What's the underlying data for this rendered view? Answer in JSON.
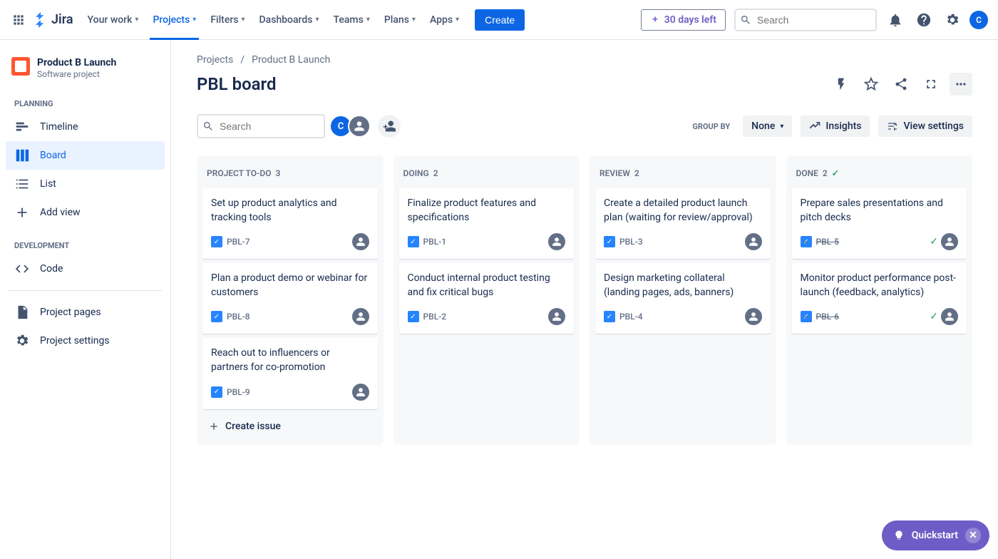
{
  "brand": "Jira",
  "topnav": {
    "items": [
      "Your work",
      "Projects",
      "Filters",
      "Dashboards",
      "Teams",
      "Plans",
      "Apps"
    ],
    "activeIndex": 1,
    "createLabel": "Create",
    "trialLabel": "30 days left",
    "searchPlaceholder": "Search",
    "avatarInitial": "C"
  },
  "sidebar": {
    "project": {
      "name": "Product B Launch",
      "type": "Software project"
    },
    "planningLabel": "PLANNING",
    "planningItems": [
      "Timeline",
      "Board",
      "List"
    ],
    "planningActiveIndex": 1,
    "addViewLabel": "Add view",
    "devLabel": "DEVELOPMENT",
    "devItems": [
      "Code"
    ],
    "bottomItems": [
      "Project pages",
      "Project settings"
    ]
  },
  "breadcrumbs": {
    "root": "Projects",
    "project": "Product B Launch"
  },
  "boardTitle": "PBL board",
  "toolbar": {
    "searchPlaceholder": "Search",
    "avatars": [
      "C",
      ""
    ],
    "groupByLabel": "GROUP BY",
    "groupByValue": "None",
    "insightsLabel": "Insights",
    "viewSettingsLabel": "View settings"
  },
  "columns": [
    {
      "name": "PROJECT TO-DO",
      "count": 3,
      "cards": [
        {
          "title": "Set up product analytics and tracking tools",
          "key": "PBL-7"
        },
        {
          "title": "Plan a product demo or webinar for customers",
          "key": "PBL-8"
        },
        {
          "title": "Reach out to influencers or partners for co-promotion",
          "key": "PBL-9"
        }
      ],
      "createLabel": "Create issue"
    },
    {
      "name": "DOING",
      "count": 2,
      "cards": [
        {
          "title": "Finalize product features and specifications",
          "key": "PBL-1"
        },
        {
          "title": "Conduct internal product testing and fix critical bugs",
          "key": "PBL-2"
        }
      ]
    },
    {
      "name": "REVIEW",
      "count": 2,
      "cards": [
        {
          "title": "Create a detailed product launch plan (waiting for review/approval)",
          "key": "PBL-3"
        },
        {
          "title": "Design marketing collateral (landing pages, ads, banners)",
          "key": "PBL-4"
        }
      ]
    },
    {
      "name": "DONE",
      "count": 2,
      "isDone": true,
      "cards": [
        {
          "title": "Prepare sales presentations and pitch decks",
          "key": "PBL-5",
          "done": true
        },
        {
          "title": "Monitor product performance post-launch (feedback, analytics)",
          "key": "PBL-6",
          "done": true
        }
      ]
    }
  ],
  "quickstartLabel": "Quickstart"
}
